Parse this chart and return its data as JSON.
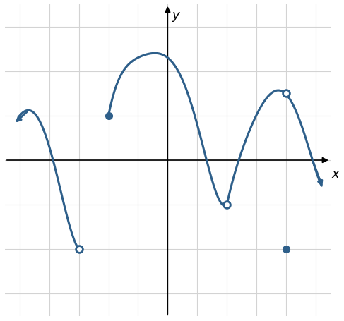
{
  "xlim": [
    -5.5,
    5.5
  ],
  "ylim": [
    -3.5,
    3.5
  ],
  "xticks": [
    -5,
    -4,
    -3,
    -2,
    -1,
    0,
    1,
    2,
    3,
    4,
    5
  ],
  "yticks": [
    -3,
    -2,
    -1,
    0,
    1,
    2,
    3
  ],
  "line_color": "#2e5f8a",
  "line_width": 2.2,
  "background_color": "#ffffff",
  "grid_color": "#d3d3d3",
  "open_circles": [
    [
      -3,
      -2
    ],
    [
      2,
      -1
    ],
    [
      4,
      1.5
    ]
  ],
  "filled_circles": [
    [
      -2,
      1
    ],
    [
      4,
      -2
    ]
  ],
  "circle_size": 7,
  "xlabel": "x",
  "ylabel": "y",
  "label_fontsize": 13,
  "piece1_pts_x": [
    -5.0,
    -4.5,
    -4.0,
    -3.5,
    -3.0
  ],
  "piece1_pts_y": [
    1.0,
    1.05,
    0.3,
    -1.0,
    -2.0
  ],
  "piece2_pts_x": [
    -2.0,
    -1.5,
    -0.5,
    0.0,
    1.0,
    2.0
  ],
  "piece2_pts_y": [
    1.0,
    2.0,
    2.4,
    2.3,
    0.8,
    -1.0
  ],
  "piece3_pts_x": [
    2.0,
    2.5,
    3.0,
    3.5,
    4.0,
    4.5,
    5.0,
    5.3
  ],
  "piece3_pts_y": [
    -1.0,
    0.2,
    1.0,
    1.5,
    1.5,
    0.8,
    -0.2,
    -0.7
  ]
}
